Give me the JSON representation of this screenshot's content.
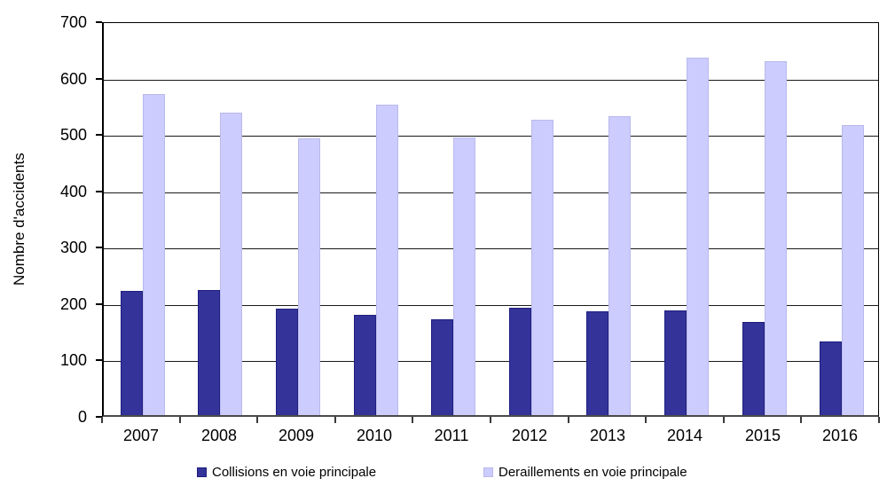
{
  "chart_data": {
    "type": "bar",
    "title": "",
    "ylabel": "Nombre d'accidents",
    "xlabel": "",
    "ylim": [
      0,
      700
    ],
    "ytick_step": 100,
    "grid": true,
    "legend_position": "bottom",
    "categories": [
      "2007",
      "2008",
      "2009",
      "2010",
      "2011",
      "2012",
      "2013",
      "2014",
      "2015",
      "2016"
    ],
    "series": [
      {
        "name": "Collisions en voie principale",
        "color": "#333399",
        "border_color": "#1f1f80",
        "values": [
          220,
          222,
          188,
          178,
          170,
          190,
          184,
          186,
          165,
          131
        ]
      },
      {
        "name": "Deraillements en voie principale",
        "color": "#ccccff",
        "border_color": "#b9b9ec",
        "values": [
          570,
          537,
          490,
          551,
          492,
          524,
          530,
          634,
          628,
          514
        ]
      }
    ]
  }
}
